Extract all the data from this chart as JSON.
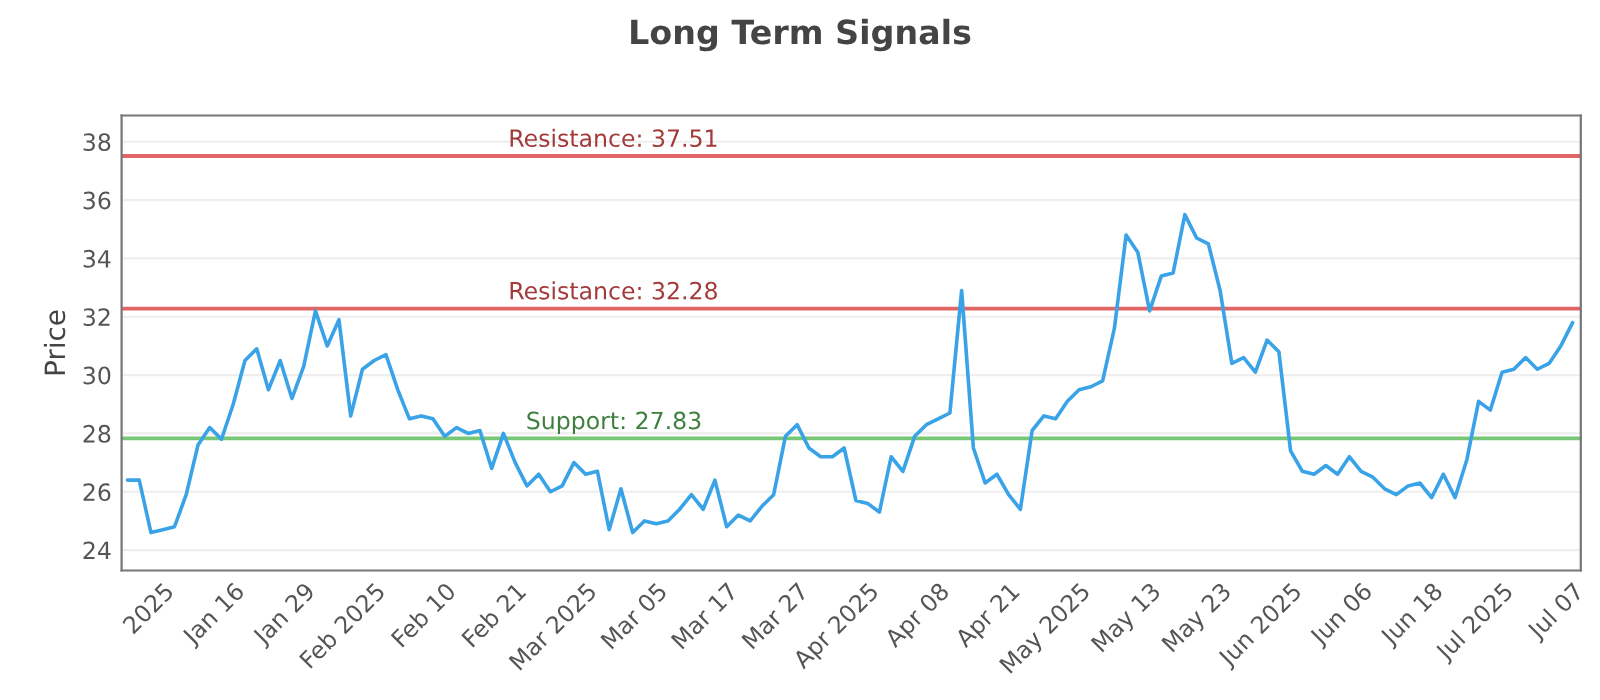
{
  "chart_data": {
    "type": "line",
    "title": "Long Term Signals",
    "ylabel": "Price",
    "categories": [
      null,
      null,
      null,
      "2025",
      null,
      null,
      null,
      null,
      null,
      "Jan 16",
      null,
      null,
      null,
      null,
      null,
      "Jan 29",
      null,
      null,
      null,
      null,
      null,
      "Feb 2025",
      null,
      null,
      null,
      null,
      null,
      "Feb 10",
      null,
      null,
      null,
      null,
      null,
      "Feb 21",
      null,
      null,
      null,
      null,
      null,
      "Mar 2025",
      null,
      null,
      null,
      null,
      null,
      "Mar 05",
      null,
      null,
      null,
      null,
      null,
      "Mar 17",
      null,
      null,
      null,
      null,
      null,
      "Mar 27",
      null,
      null,
      null,
      null,
      null,
      "Apr 2025",
      null,
      null,
      null,
      null,
      null,
      "Apr 08",
      null,
      null,
      null,
      null,
      null,
      "Apr 21",
      null,
      null,
      null,
      null,
      null,
      "May 2025",
      null,
      null,
      null,
      null,
      null,
      "May 13",
      null,
      null,
      null,
      null,
      null,
      "May 23",
      null,
      null,
      null,
      null,
      null,
      "Jun 2025",
      null,
      null,
      null,
      null,
      null,
      "Jun 06",
      null,
      null,
      null,
      null,
      null,
      "Jun 18",
      null,
      null,
      null,
      null,
      null,
      "Jul 2025",
      null,
      null,
      null,
      null,
      null,
      "Jul 07"
    ],
    "series": [
      {
        "color": "#3aa3e8",
        "values": [
          26.4,
          26.4,
          24.6,
          24.7,
          24.8,
          25.9,
          27.6,
          28.2,
          27.8,
          29.0,
          30.5,
          30.9,
          29.5,
          30.5,
          29.2,
          30.3,
          32.2,
          31.0,
          31.9,
          28.6,
          30.2,
          30.5,
          30.7,
          29.5,
          28.5,
          28.6,
          28.5,
          27.9,
          28.2,
          28.0,
          28.1,
          26.8,
          28.0,
          27.0,
          26.2,
          26.6,
          26.0,
          26.2,
          27.0,
          26.6,
          26.7,
          24.7,
          26.1,
          24.6,
          25.0,
          24.9,
          25.0,
          25.4,
          25.9,
          25.4,
          26.4,
          24.8,
          25.2,
          25.0,
          25.5,
          25.9,
          27.9,
          28.3,
          27.5,
          27.2,
          27.2,
          27.5,
          25.7,
          25.6,
          25.3,
          27.2,
          26.7,
          27.9,
          28.3,
          28.5,
          28.7,
          32.9,
          27.5,
          26.3,
          26.6,
          25.9,
          25.4,
          28.1,
          28.6,
          28.5,
          29.1,
          29.5,
          29.6,
          29.8,
          31.6,
          34.8,
          34.2,
          32.2,
          33.4,
          33.5,
          35.5,
          34.7,
          34.5,
          32.9,
          30.4,
          30.6,
          30.1,
          31.2,
          30.8,
          27.4,
          26.7,
          26.6,
          26.9,
          26.6,
          27.2,
          26.7,
          26.5,
          26.1,
          25.9,
          26.2,
          26.3,
          25.8,
          26.6,
          25.8,
          27.1,
          29.1,
          28.8,
          30.1,
          30.2,
          30.6,
          30.2,
          30.4,
          31.0,
          31.8
        ]
      }
    ],
    "ylim": [
      23.3,
      38.9
    ],
    "yticks": [
      24,
      26,
      28,
      30,
      32,
      34,
      36,
      38
    ],
    "grid": "y",
    "marker": "none",
    "line_style": "solid",
    "ref_lines": [
      {
        "axis": "y",
        "value": 37.51,
        "label": "Resistance: 37.51",
        "color": "#e06666"
      },
      {
        "axis": "y",
        "value": 32.28,
        "label": "Resistance: 32.28",
        "color": "#e06666"
      },
      {
        "axis": "y",
        "value": 27.83,
        "label": "Support: 27.83",
        "color": "#77c777"
      }
    ]
  }
}
